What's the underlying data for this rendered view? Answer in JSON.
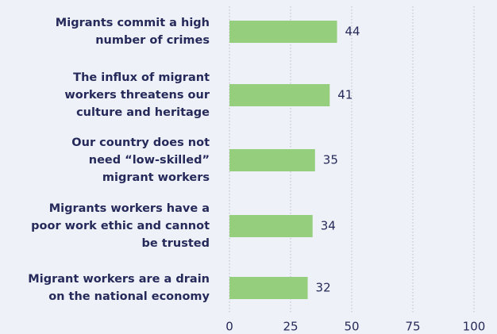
{
  "chart_data": {
    "type": "bar",
    "orientation": "horizontal",
    "categories": [
      "Migrants commit a high\nnumber of crimes",
      "The influx of migrant\nworkers threatens our\nculture and heritage",
      "Our country does not\nneed “low-skilled”\nmigrant workers",
      "Migrants workers have a\npoor work ethic and cannot\nbe trusted",
      "Migrant workers are a drain\non the national economy"
    ],
    "values": [
      44,
      41,
      35,
      34,
      32
    ],
    "color": "#95cf7d",
    "xlim": [
      0,
      100
    ],
    "xticks": [
      0,
      25,
      50,
      75,
      100
    ],
    "grid": true
  }
}
